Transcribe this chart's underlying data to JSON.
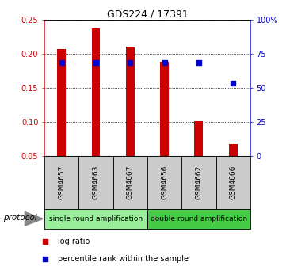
{
  "title": "GDS224 / 17391",
  "categories": [
    "GSM4657",
    "GSM4663",
    "GSM4667",
    "GSM4656",
    "GSM4662",
    "GSM4666"
  ],
  "log_ratio": [
    0.207,
    0.237,
    0.21,
    0.188,
    0.101,
    0.067
  ],
  "percentile_rank": [
    0.1875,
    0.1875,
    0.1875,
    0.1875,
    0.1875,
    0.157
  ],
  "bar_color": "#cc0000",
  "dot_color": "#0000cc",
  "ylim_left": [
    0.05,
    0.25
  ],
  "ylim_right": [
    0,
    100
  ],
  "yticks_left": [
    0.05,
    0.1,
    0.15,
    0.2,
    0.25
  ],
  "yticks_right": [
    0,
    25,
    50,
    75,
    100
  ],
  "yticklabels_left": [
    "0.05",
    "0.10",
    "0.15",
    "0.20",
    "0.25"
  ],
  "yticklabels_right": [
    "0",
    "25",
    "50",
    "75",
    "100%"
  ],
  "protocol_groups": [
    {
      "label": "single round amplification",
      "start": 0,
      "end": 3,
      "color": "#99ee99"
    },
    {
      "label": "double round amplification",
      "start": 3,
      "end": 6,
      "color": "#44cc44"
    }
  ],
  "protocol_label": "protocol",
  "legend_items": [
    {
      "label": "log ratio",
      "color": "#cc0000"
    },
    {
      "label": "percentile rank within the sample",
      "color": "#0000cc"
    }
  ],
  "bg_color": "#ffffff",
  "plot_bg": "#ffffff",
  "tick_label_color_left": "#cc0000",
  "tick_label_color_right": "#0000cc",
  "bar_bottom": 0.05,
  "sample_bg": "#cccccc"
}
